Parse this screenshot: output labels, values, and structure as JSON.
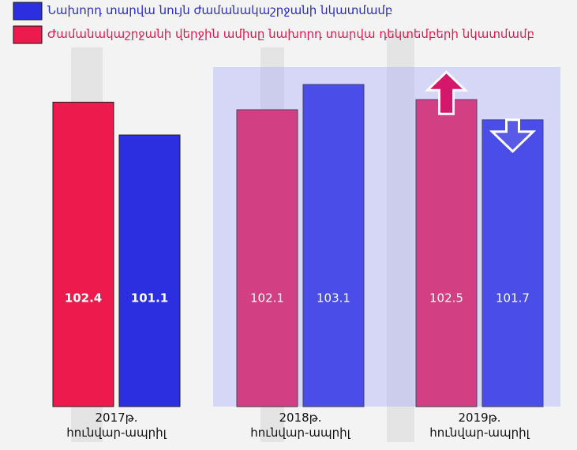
{
  "chart_data": {
    "type": "bar",
    "categories": [
      "2017թ.\nհունվար-ապրիլ",
      "2018թ.\nհունվար-ապրիլ",
      "2019թ.\nհունվար-ապրիլ"
    ],
    "series": [
      {
        "name": "Ժամանակաշրջանի վերջին ամիսը նախորդ տարվա դեկտեմբերի նկատմամբ",
        "color": "#ec1a4d",
        "values": [
          102.4,
          102.1,
          102.5
        ]
      },
      {
        "name": "Նախորդ տարվա նույն ժամանակաշրջանի նկատմամբ",
        "color": "#2b2fe0",
        "values": [
          101.1,
          103.1,
          101.7
        ]
      }
    ]
  }
}
